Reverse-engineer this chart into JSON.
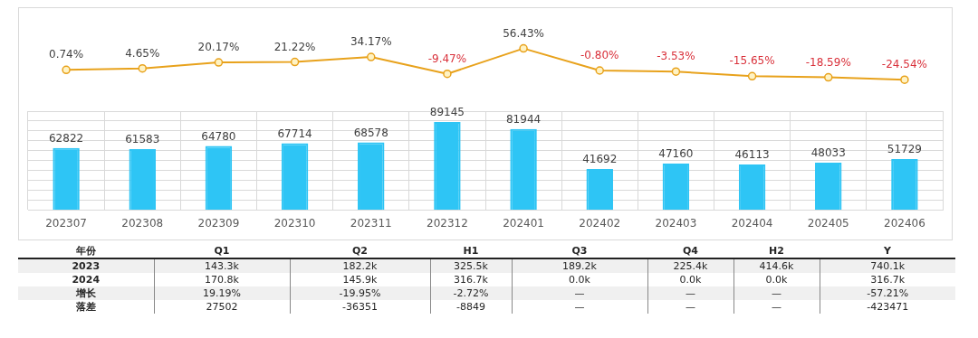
{
  "chart_data": [
    {
      "type": "line",
      "categories": [
        "202307",
        "202308",
        "202309",
        "202310",
        "202311",
        "202312",
        "202401",
        "202402",
        "202403",
        "202404",
        "202405",
        "202406"
      ],
      "series": [
        {
          "color": "#e8a21c",
          "values": [
            0.74,
            4.65,
            20.17,
            21.22,
            34.17,
            -9.47,
            56.43,
            -0.8,
            -3.53,
            -15.65,
            -18.59,
            -24.54
          ],
          "value_labels": [
            "0.74%",
            "4.65%",
            "20.17%",
            "21.22%",
            "34.17%",
            "-9.47%",
            "56.43%",
            "-0.80%",
            "-3.53%",
            "-15.65%",
            "-18.59%",
            "-24.54%"
          ]
        }
      ],
      "marker": "circle",
      "tick_labels": false,
      "grid": false,
      "legend": false
    },
    {
      "type": "bar",
      "categories": [
        "202307",
        "202308",
        "202309",
        "202310",
        "202311",
        "202312",
        "202401",
        "202402",
        "202403",
        "202404",
        "202405",
        "202406"
      ],
      "series": [
        {
          "color": "#2ec5f5",
          "values": [
            62822,
            61583,
            64780,
            67714,
            68578,
            89145,
            81944,
            41692,
            47160,
            46113,
            48033,
            51729
          ]
        }
      ],
      "ylim": [
        0,
        100000
      ],
      "yticks": [
        {
          "value": 0,
          "label": null
        },
        {
          "value": 10000,
          "label": null
        },
        {
          "value": 20000,
          "label": null
        },
        {
          "value": 30000,
          "label": null
        },
        {
          "value": 40000,
          "label": null
        },
        {
          "value": 50000,
          "label": null
        },
        {
          "value": 60000,
          "label": null
        },
        {
          "value": 70000,
          "label": null
        },
        {
          "value": 80000,
          "label": null
        },
        {
          "value": 90000,
          "label": null
        },
        {
          "value": 100000,
          "label": null
        }
      ],
      "data_labels": true,
      "tick_labels": "x",
      "grid": true,
      "legend": false
    },
    {
      "type": "other",
      "ylabel": "年份",
      "categories": [
        "Q1",
        "Q2",
        "H1",
        "Q3",
        "Q4",
        "H2",
        "Y"
      ],
      "y_categories": [
        "2023",
        "2024",
        "增长",
        "落差"
      ],
      "cell_labels": [
        [
          "143.3k",
          "182.2k",
          "325.5k",
          "189.2k",
          "225.4k",
          "414.6k",
          "740.1k"
        ],
        [
          "170.8k",
          "145.9k",
          "316.7k",
          "0.0k",
          "0.0k",
          "0.0k",
          "316.7k"
        ],
        [
          "19.19%",
          "-19.95%",
          "-2.72%",
          "—",
          "—",
          "—",
          "-57.21%"
        ],
        [
          "27502",
          "-36351",
          "-8849",
          "—",
          "—",
          "—",
          "-423471"
        ]
      ]
    }
  ]
}
